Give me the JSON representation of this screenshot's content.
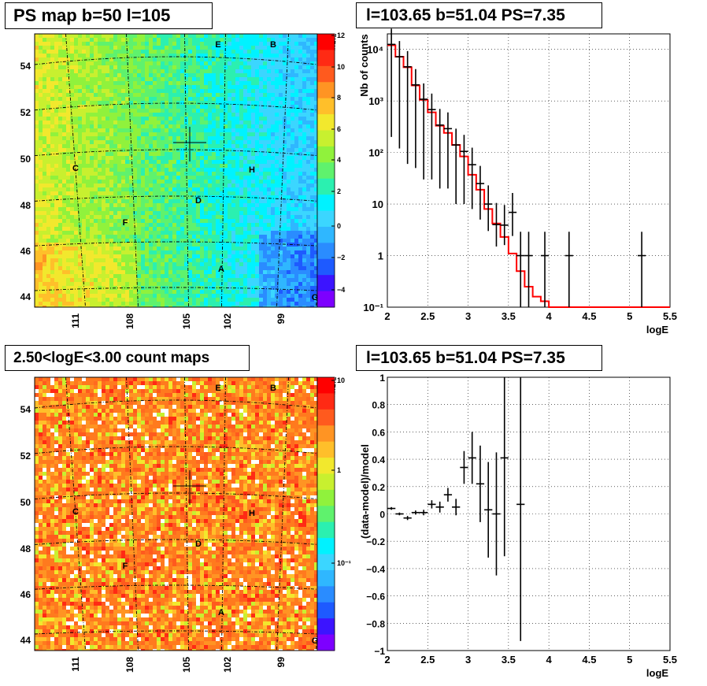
{
  "panels": {
    "top_left_title": "PS map b=50 l=105",
    "top_right_title": "l=103.65 b=51.04 PS=7.35",
    "bottom_left_title": "2.50<logE<3.00 count maps",
    "bottom_right_title": "l=103.65 b=51.04 PS=7.35"
  },
  "maps": {
    "lat_labels": [
      "54",
      "52",
      "50",
      "48",
      "46",
      "44"
    ],
    "lon_labels": [
      "111",
      "108",
      "105",
      "102",
      "99"
    ],
    "point_labels": [
      "E",
      "B",
      "C",
      "H",
      "D",
      "F",
      "A",
      "G"
    ],
    "ps_colorbar_labels": [
      "12",
      "10",
      "8",
      "6",
      "4",
      "2",
      "0",
      "−2",
      "−4"
    ],
    "count_colorbar_labels": [
      "10",
      "1",
      "10⁻¹"
    ],
    "ps_colors": [
      "#7d00ff",
      "#3c14ff",
      "#1e5aff",
      "#2a8cff",
      "#2fb7ff",
      "#3bd6ff",
      "#00f2ff",
      "#2bf0b0",
      "#5ff26d",
      "#90f23c",
      "#c8f02f",
      "#f2e82d",
      "#ffbf2a",
      "#ff9423",
      "#ff5a1e",
      "#ff2a14",
      "#ff0000"
    ]
  },
  "chart_data": [
    {
      "type": "line",
      "title": "l=103.65 b=51.04 PS=7.35",
      "xlabel": "logE",
      "ylabel": "Nb of counts",
      "xlim": [
        2,
        5.5
      ],
      "ylim": [
        0.1,
        20000
      ],
      "yscale": "log",
      "grid": true,
      "xticks": [
        "2",
        "2.5",
        "3",
        "3.5",
        "4",
        "4.5",
        "5",
        "5.5"
      ],
      "yticks": [
        "10⁻¹",
        "1",
        "10",
        "10²",
        "10³",
        "10⁴"
      ],
      "series": [
        {
          "kind": "model_step",
          "color": "#ff0000",
          "bin_edges": [
            2.0,
            2.1,
            2.2,
            2.3,
            2.4,
            2.5,
            2.6,
            2.7,
            2.8,
            2.9,
            3.0,
            3.1,
            3.2,
            3.3,
            3.4,
            3.5,
            3.6,
            3.7,
            3.8,
            3.9,
            4.0,
            5.5
          ],
          "values": [
            12000,
            7200,
            4500,
            2000,
            1050,
            600,
            330,
            240,
            140,
            84,
            37,
            19,
            8,
            4.2,
            2.3,
            1.1,
            0.5,
            0.25,
            0.16,
            0.13,
            0.1
          ]
        },
        {
          "kind": "data_points",
          "color": "#000000",
          "x": [
            2.05,
            2.15,
            2.25,
            2.35,
            2.45,
            2.55,
            2.65,
            2.75,
            2.85,
            2.95,
            3.05,
            3.15,
            3.25,
            3.35,
            3.45,
            3.55,
            3.65,
            3.75,
            3.95,
            4.25,
            5.15
          ],
          "y": [
            12500,
            7200,
            4600,
            2050,
            1080,
            680,
            340,
            290,
            140,
            105,
            58,
            25,
            10,
            4,
            3.9,
            6.9,
            1,
            1,
            1,
            1,
            1
          ],
          "yerr_low": [
            12300,
            7080,
            4540,
            2000,
            1050,
            650,
            320,
            270,
            130,
            95,
            50,
            20,
            7,
            2.5,
            2.3,
            4.5,
            0.9,
            0.9,
            0.9,
            0.9,
            0.9
          ],
          "yerr_high": [
            12700,
            7320,
            4660,
            2100,
            1110,
            710,
            360,
            310,
            150,
            115,
            66,
            30,
            13,
            6.5,
            5.7,
            9.5,
            1.9,
            1.9,
            1.9,
            1.9,
            1.9
          ],
          "xerr": 0.05
        }
      ]
    },
    {
      "type": "scatter",
      "title": "l=103.65 b=51.04 PS=7.35",
      "xlabel": "logE",
      "ylabel": "(data-model)/model",
      "xlim": [
        2,
        5.5
      ],
      "ylim": [
        -1,
        1
      ],
      "grid": true,
      "xticks": [
        "2",
        "2.5",
        "3",
        "3.5",
        "4",
        "4.5",
        "5",
        "5.5"
      ],
      "yticks": [
        "−1",
        "−0.8",
        "−0.6",
        "−0.4",
        "−0.2",
        "0",
        "0.2",
        "0.4",
        "0.6",
        "0.8",
        "1"
      ],
      "series": [
        {
          "kind": "residuals",
          "color": "#000000",
          "x": [
            2.05,
            2.15,
            2.25,
            2.35,
            2.45,
            2.55,
            2.65,
            2.75,
            2.85,
            2.95,
            3.05,
            3.15,
            3.25,
            3.35,
            3.45,
            3.65
          ],
          "y": [
            0.04,
            0.0,
            -0.03,
            0.01,
            0.01,
            0.07,
            0.05,
            0.14,
            0.05,
            0.34,
            0.41,
            0.22,
            0.03,
            0.0,
            0.41,
            0.07
          ],
          "yerr": [
            0.01,
            0.01,
            0.015,
            0.015,
            0.02,
            0.03,
            0.04,
            0.05,
            0.06,
            0.12,
            0.19,
            0.28,
            0.35,
            0.45,
            0.72,
            1.0
          ],
          "xerr": 0.05
        }
      ]
    }
  ]
}
